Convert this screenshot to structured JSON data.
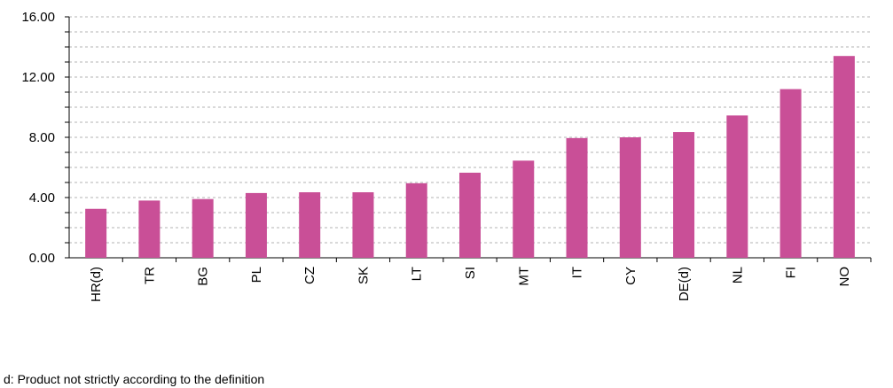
{
  "chart_data": {
    "type": "bar",
    "categories": [
      "HR(d)",
      "TR",
      "BG",
      "PL",
      "CZ",
      "SK",
      "LT",
      "SI",
      "MT",
      "IT",
      "CY",
      "DE(d)",
      "NL",
      "FI",
      "NO"
    ],
    "values": [
      3.25,
      3.8,
      3.9,
      4.3,
      4.35,
      4.35,
      4.95,
      5.65,
      6.45,
      7.95,
      8.0,
      8.35,
      9.45,
      11.2,
      13.4
    ],
    "y_ticks": [
      "0.00",
      "4.00",
      "8.00",
      "12.00",
      "16.00"
    ],
    "ylim": [
      0,
      16
    ],
    "grid": "horizontal-dashed",
    "bar_color": "#c94f97",
    "title": "",
    "xlabel": "",
    "ylabel": ""
  },
  "footnote": "d: Product not strictly according to the definition"
}
